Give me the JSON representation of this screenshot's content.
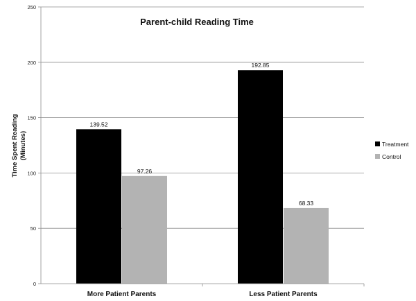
{
  "chart_data": {
    "type": "bar",
    "title": "Parent-child Reading Time",
    "xlabel": "",
    "ylabel": "Time Spent Reading (Minutes)",
    "ylabel_lines": [
      "Time Spent Reading",
      "(Minutes)"
    ],
    "ylim": [
      0,
      250
    ],
    "yticks": [
      0,
      50,
      100,
      150,
      200,
      250
    ],
    "grid": true,
    "legend_position": "right",
    "categories": [
      "More Patient Parents",
      "Less Patient Parents"
    ],
    "series": [
      {
        "name": "Treatment",
        "color": "#000000",
        "values": [
          139.52,
          192.85
        ],
        "labels": [
          "139.52",
          "192.85"
        ]
      },
      {
        "name": "Control",
        "color": "#b3b3b3",
        "values": [
          97.26,
          68.33
        ],
        "labels": [
          "97.26",
          "68.33"
        ]
      }
    ]
  }
}
